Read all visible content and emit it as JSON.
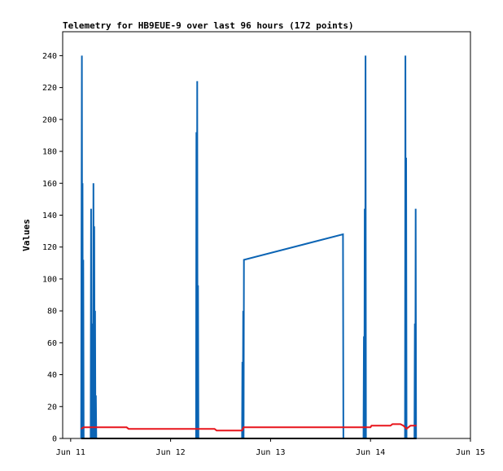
{
  "chart_data": {
    "type": "line",
    "title": "Telemetry for HB9EUE-9 over last 96 hours (172 points)",
    "ylabel": "Values",
    "xlabel": "",
    "x_ticks": [
      "Jun 11",
      "Jun 12",
      "Jun 13",
      "Jun 14",
      "Jun 15"
    ],
    "y_ticks": [
      0,
      20,
      40,
      60,
      80,
      100,
      120,
      140,
      160,
      180,
      200,
      220,
      240
    ],
    "xlim": [
      -0.08,
      4.0
    ],
    "ylim": [
      0,
      255
    ],
    "grid": false,
    "series": [
      {
        "color": "#0b64b4",
        "points": [
          [
            0.105,
            0
          ],
          [
            0.108,
            120
          ],
          [
            0.112,
            240
          ],
          [
            0.116,
            0
          ],
          [
            0.119,
            160
          ],
          [
            0.123,
            0
          ],
          [
            0.126,
            112
          ],
          [
            0.13,
            0
          ],
          [
            0.2,
            0
          ],
          [
            0.204,
            144
          ],
          [
            0.208,
            0
          ],
          [
            0.212,
            72
          ],
          [
            0.216,
            0
          ],
          [
            0.22,
            48
          ],
          [
            0.224,
            0
          ],
          [
            0.228,
            160
          ],
          [
            0.232,
            0
          ],
          [
            0.236,
            133
          ],
          [
            0.24,
            0
          ],
          [
            0.244,
            80
          ],
          [
            0.248,
            0
          ],
          [
            0.252,
            27
          ],
          [
            0.256,
            0
          ],
          [
            1.255,
            0
          ],
          [
            1.258,
            192
          ],
          [
            1.262,
            0
          ],
          [
            1.266,
            224
          ],
          [
            1.27,
            0
          ],
          [
            1.274,
            96
          ],
          [
            1.278,
            0
          ],
          [
            1.715,
            0
          ],
          [
            1.718,
            48
          ],
          [
            1.722,
            0
          ],
          [
            1.726,
            80
          ],
          [
            1.73,
            0
          ],
          [
            1.734,
            112
          ],
          [
            2.725,
            128
          ],
          [
            2.729,
            0
          ],
          [
            2.93,
            0
          ],
          [
            2.934,
            64
          ],
          [
            2.938,
            0
          ],
          [
            2.942,
            144
          ],
          [
            2.946,
            0
          ],
          [
            2.95,
            240
          ],
          [
            2.954,
            0
          ],
          [
            3.345,
            0
          ],
          [
            3.349,
            240
          ],
          [
            3.353,
            0
          ],
          [
            3.357,
            176
          ],
          [
            3.361,
            0
          ],
          [
            3.44,
            0
          ],
          [
            3.444,
            72
          ],
          [
            3.448,
            0
          ],
          [
            3.452,
            144
          ],
          [
            3.456,
            0
          ],
          [
            3.46,
            0
          ]
        ]
      },
      {
        "color": "#e8141b",
        "points": [
          [
            0.105,
            6
          ],
          [
            0.13,
            7
          ],
          [
            0.256,
            7
          ],
          [
            0.56,
            7
          ],
          [
            0.58,
            6
          ],
          [
            1.44,
            6
          ],
          [
            1.46,
            5
          ],
          [
            1.715,
            5
          ],
          [
            1.73,
            7
          ],
          [
            3.0,
            7
          ],
          [
            3.01,
            8
          ],
          [
            3.2,
            8
          ],
          [
            3.22,
            9
          ],
          [
            3.3,
            9
          ],
          [
            3.33,
            8
          ],
          [
            3.36,
            6
          ],
          [
            3.4,
            8
          ],
          [
            3.46,
            8
          ]
        ]
      },
      {
        "color": "#000000",
        "points": [
          [
            0.105,
            0
          ],
          [
            3.46,
            0
          ]
        ]
      }
    ]
  }
}
